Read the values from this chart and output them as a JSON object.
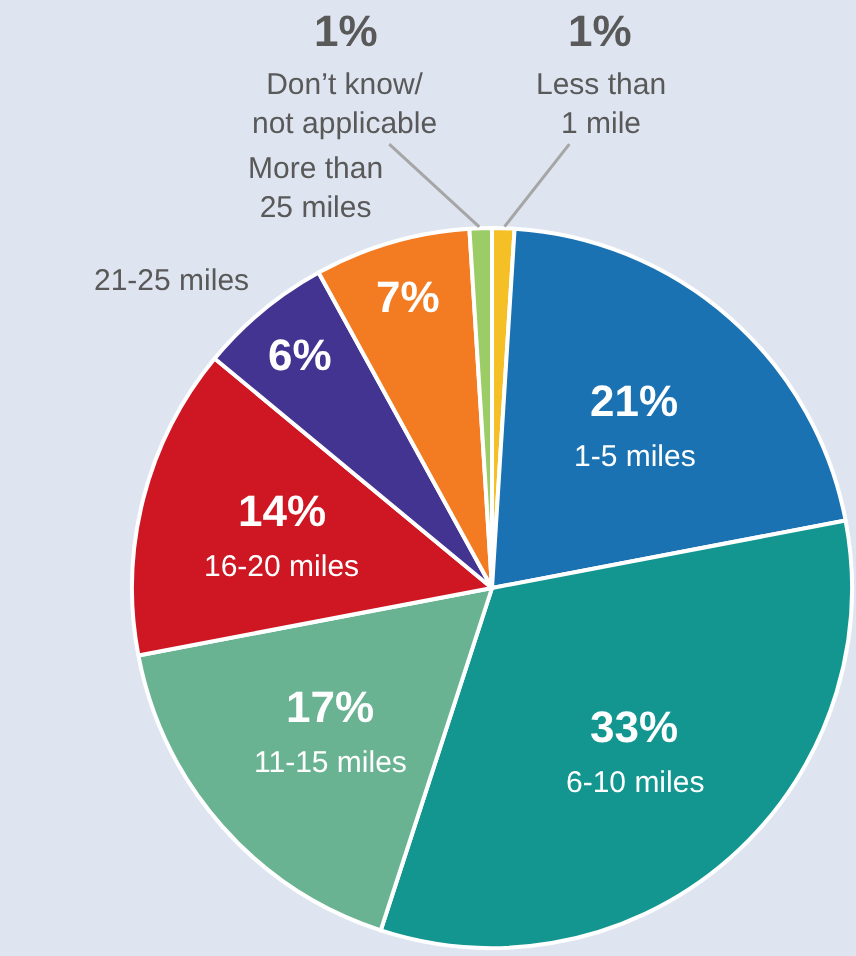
{
  "chart_data": {
    "type": "pie",
    "categories": [
      "Less than\n1 mile",
      "1-5 miles",
      "6-10 miles",
      "11-15 miles",
      "16-20 miles",
      "21-25 miles",
      "More than\n25 miles",
      "Don’t know/\nnot applicable"
    ],
    "values": [
      1,
      21,
      33,
      17,
      14,
      6,
      7,
      1
    ],
    "colors": [
      "#f5bf26",
      "#1a72b2",
      "#13968f",
      "#69b393",
      "#ce1722",
      "#433492",
      "#f37c22",
      "#9ccc65"
    ],
    "value_labels": [
      "1%",
      "21%",
      "33%",
      "17%",
      "14%",
      "6%",
      "7%",
      "1%"
    ]
  }
}
